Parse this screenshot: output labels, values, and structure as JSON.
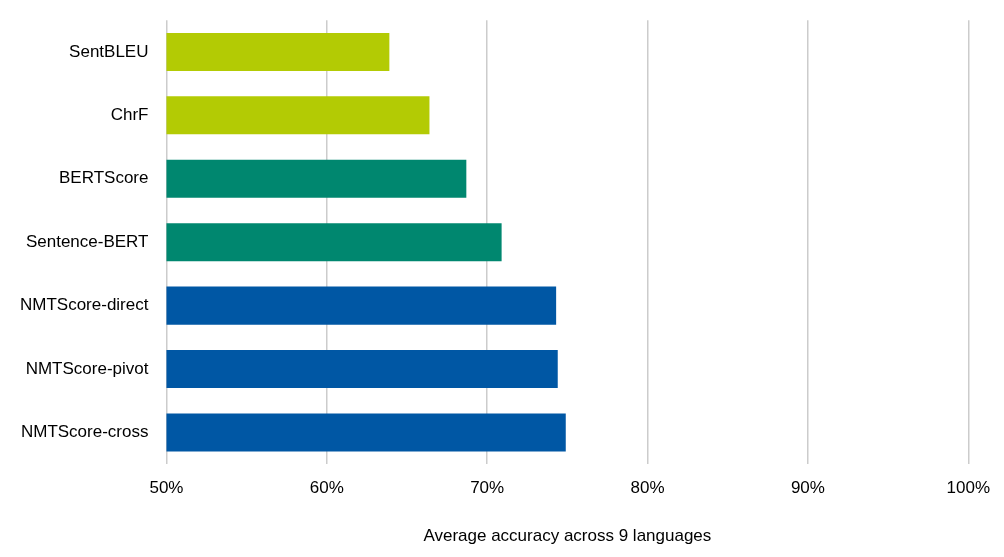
{
  "chart_data": {
    "type": "bar",
    "orientation": "horizontal",
    "categories": [
      "SentBLEU",
      "ChrF",
      "BERTScore",
      "Sentence-BERT",
      "NMTScore-direct",
      "NMTScore-pivot",
      "NMTScore-cross"
    ],
    "values": [
      63.9,
      66.4,
      68.7,
      70.9,
      74.3,
      74.4,
      74.9
    ],
    "colors": [
      "#b3cb04",
      "#b3cb04",
      "#00876f",
      "#00876f",
      "#0057a4",
      "#0057a4",
      "#0057a4"
    ],
    "x_label": "Average accuracy across 9 languages",
    "xlim": [
      50,
      100
    ],
    "xticks": [
      {
        "value": 50,
        "label": "50%"
      },
      {
        "value": 60,
        "label": "60%"
      },
      {
        "value": 70,
        "label": "70%"
      },
      {
        "value": 80,
        "label": "80%"
      },
      {
        "value": 90,
        "label": "90%"
      },
      {
        "value": 100,
        "label": "100%"
      }
    ],
    "grid": true
  }
}
